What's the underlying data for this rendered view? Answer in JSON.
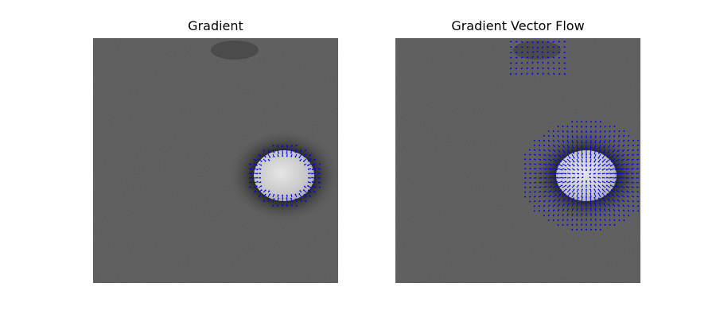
{
  "figure": {
    "panels": [
      {
        "title": "Gradient",
        "content": "microscopy-image-with-gradient-vectors"
      },
      {
        "title": "Gradient Vector Flow",
        "content": "microscopy-image-with-gradient-vector-flow"
      }
    ]
  },
  "colors": {
    "background": "#ffffff",
    "image_gray": "#5a5a5a",
    "vectors": "#0000ff",
    "blob": "#d8d8d8"
  }
}
